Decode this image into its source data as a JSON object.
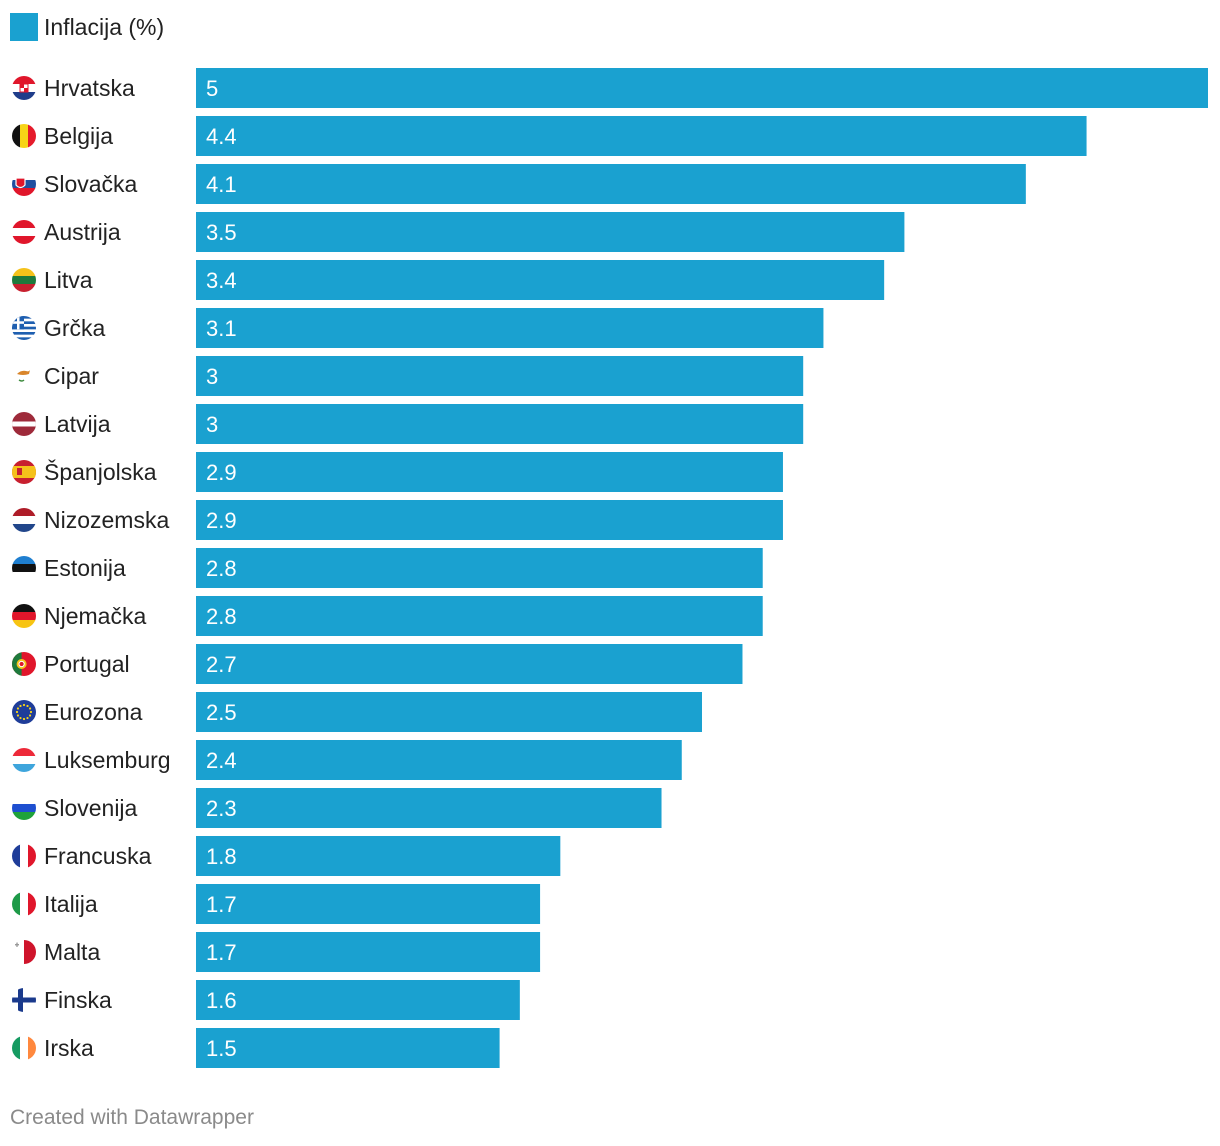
{
  "legend": {
    "label": "Inflacija (%)",
    "color": "#1aa1d0"
  },
  "footer": "Created with Datawrapper",
  "chart_data": {
    "type": "bar",
    "orientation": "horizontal",
    "categories": [
      "Hrvatska",
      "Belgija",
      "Slovačka",
      "Austrija",
      "Litva",
      "Grčka",
      "Cipar",
      "Latvija",
      "Španjolska",
      "Nizozemska",
      "Estonija",
      "Njemačka",
      "Portugal",
      "Eurozona",
      "Luksemburg",
      "Slovenija",
      "Francuska",
      "Italija",
      "Malta",
      "Finska",
      "Irska"
    ],
    "series": [
      {
        "name": "Inflacija (%)",
        "values": [
          5,
          4.4,
          4.1,
          3.5,
          3.4,
          3.1,
          3,
          3,
          2.9,
          2.9,
          2.8,
          2.8,
          2.7,
          2.5,
          2.4,
          2.3,
          1.8,
          1.7,
          1.7,
          1.6,
          1.5
        ]
      }
    ],
    "xlim": [
      0,
      5
    ],
    "grid": false,
    "legend_position": "top-left",
    "flags": [
      "croatia-flag-icon",
      "belgium-flag-icon",
      "slovakia-flag-icon",
      "austria-flag-icon",
      "lithuania-flag-icon",
      "greece-flag-icon",
      "cyprus-flag-icon",
      "latvia-flag-icon",
      "spain-flag-icon",
      "netherlands-flag-icon",
      "estonia-flag-icon",
      "germany-flag-icon",
      "portugal-flag-icon",
      "eu-flag-icon",
      "luxembourg-flag-icon",
      "slovenia-flag-icon",
      "france-flag-icon",
      "italy-flag-icon",
      "malta-flag-icon",
      "finland-flag-icon",
      "ireland-flag-icon"
    ]
  }
}
